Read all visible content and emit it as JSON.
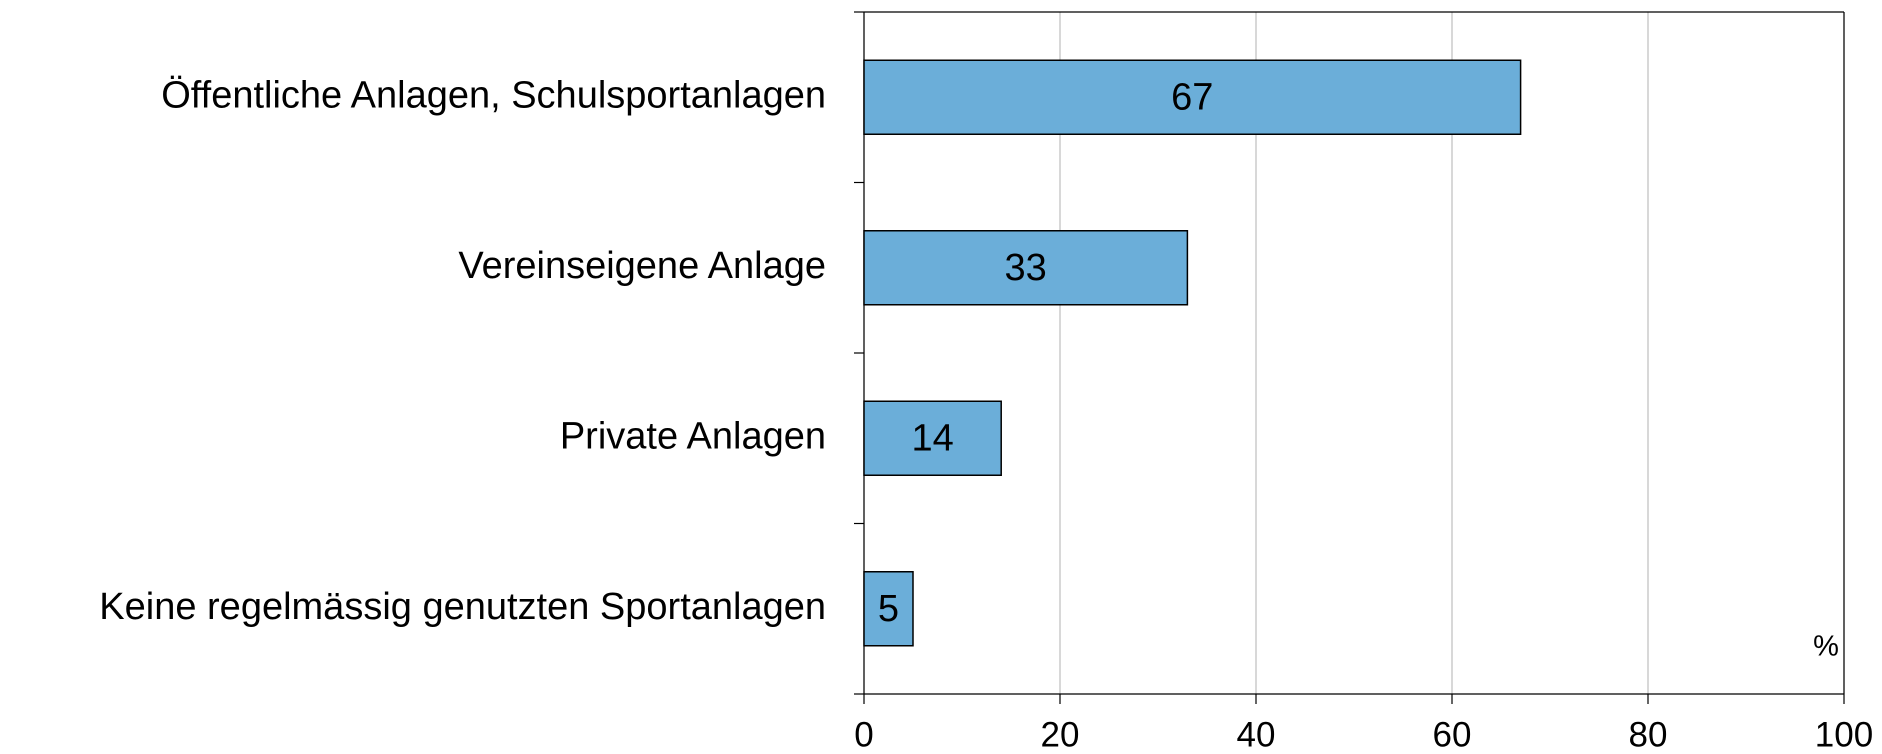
{
  "chart_data": {
    "type": "bar",
    "orientation": "horizontal",
    "categories": [
      "Öffentliche Anlagen, Schulsportanlagen",
      "Vereinseigene Anlage",
      "Private Anlagen",
      "Keine regelmässig genutzten Sportanlagen"
    ],
    "values": [
      67,
      33,
      14,
      5
    ],
    "color": "#6baed9",
    "xlim": [
      0,
      100
    ],
    "xticks": [
      0,
      20,
      40,
      60,
      80,
      100
    ],
    "grid": true,
    "annotation": "%"
  }
}
